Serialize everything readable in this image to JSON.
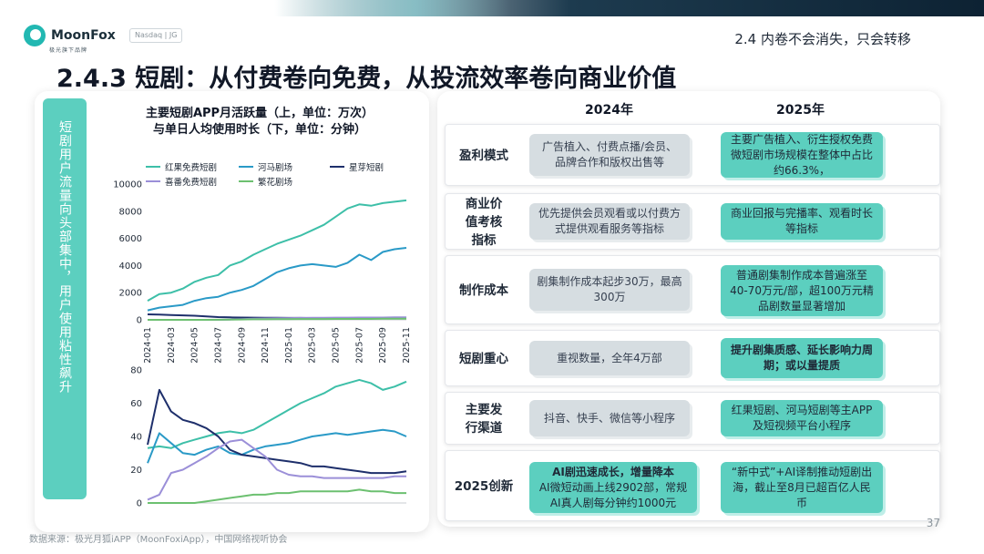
{
  "brand": {
    "name": "MoonFox",
    "sub": "极光旗下品牌",
    "badge": "Nasdaq | JG"
  },
  "section_tag": "2.4 内卷不会消失，只会转移",
  "title": "2.4.3 短剧：从付费卷向免费，从投流效率卷向商业价值",
  "left": {
    "vertical_label": "短剧用户流量向头部集中，用户使用粘性飙升",
    "chart_title_line1": "主要短剧APP月活跃量（上，单位：万次）",
    "chart_title_line2": "与单日人均使用时长（下，单位：分钟）"
  },
  "chart_data": [
    {
      "type": "line",
      "title": "主要短剧APP月活跃量（上，单位：万次）",
      "ylabel": "万次",
      "ylim": [
        0,
        10000
      ],
      "yticks": [
        0,
        2000,
        4000,
        6000,
        8000,
        10000
      ],
      "x": [
        "2024-01",
        "2024-02",
        "2024-03",
        "2024-04",
        "2024-05",
        "2024-06",
        "2024-07",
        "2024-08",
        "2024-09",
        "2024-10",
        "2024-11",
        "2024-12",
        "2025-01",
        "2025-02",
        "2025-03",
        "2025-04",
        "2025-05",
        "2025-06",
        "2025-07",
        "2025-08",
        "2025-09",
        "2025-10",
        "2025-11"
      ],
      "xtick_labels": [
        "2024-01",
        "2024-03",
        "2024-05",
        "2024-07",
        "2024-09",
        "2024-11",
        "2025-01",
        "2025-03",
        "2025-05",
        "2025-07",
        "2025-09",
        "2025-11"
      ],
      "series": [
        {
          "name": "红果免费短剧",
          "color": "#3dbfa8",
          "values": [
            1400,
            1900,
            2000,
            2300,
            2800,
            3100,
            3300,
            4000,
            4300,
            4800,
            5200,
            5600,
            5900,
            6200,
            6600,
            7000,
            7600,
            8200,
            8500,
            8400,
            8600,
            8700,
            8800
          ]
        },
        {
          "name": "河马剧场",
          "color": "#2a9ac7",
          "values": [
            700,
            900,
            1000,
            1100,
            1400,
            1600,
            1700,
            2000,
            2200,
            2500,
            3000,
            3500,
            3800,
            4000,
            4100,
            4000,
            3900,
            4200,
            4800,
            4400,
            5000,
            5200,
            5300
          ]
        },
        {
          "name": "星芽短剧",
          "color": "#1e2f6b",
          "values": [
            400,
            380,
            350,
            330,
            300,
            250,
            200,
            180,
            170,
            160,
            150,
            150,
            140,
            140,
            130,
            130,
            130,
            120,
            120,
            120,
            120,
            120,
            120
          ]
        },
        {
          "name": "喜番免费短剧",
          "color": "#9b8fd8",
          "values": [
            0,
            0,
            0,
            0,
            0,
            0,
            0,
            20,
            50,
            80,
            100,
            120,
            130,
            140,
            150,
            150,
            160,
            160,
            170,
            170,
            170,
            180,
            180
          ]
        },
        {
          "name": "繁花剧场",
          "color": "#6cc070",
          "values": [
            0,
            0,
            0,
            0,
            0,
            0,
            10,
            20,
            30,
            40,
            40,
            50,
            50,
            60,
            60,
            60,
            70,
            70,
            70,
            70,
            80,
            80,
            80
          ]
        }
      ]
    },
    {
      "type": "line",
      "title": "单日人均使用时长（下，单位：分钟）",
      "ylabel": "分钟",
      "ylim": [
        0,
        80
      ],
      "yticks": [
        0,
        20,
        40,
        60,
        80
      ],
      "x": [
        "2024-01",
        "2024-02",
        "2024-03",
        "2024-04",
        "2024-05",
        "2024-06",
        "2024-07",
        "2024-08",
        "2024-09",
        "2024-10",
        "2024-11",
        "2024-12",
        "2025-01",
        "2025-02",
        "2025-03",
        "2025-04",
        "2025-05",
        "2025-06",
        "2025-07",
        "2025-08",
        "2025-09",
        "2025-10",
        "2025-11"
      ],
      "series": [
        {
          "name": "红果免费短剧",
          "color": "#3dbfa8",
          "values": [
            33,
            34,
            33,
            36,
            38,
            40,
            42,
            43,
            42,
            44,
            48,
            52,
            56,
            60,
            63,
            66,
            70,
            72,
            74,
            72,
            68,
            70,
            73
          ]
        },
        {
          "name": "河马剧场",
          "color": "#2a9ac7",
          "values": [
            24,
            42,
            36,
            30,
            29,
            32,
            34,
            30,
            29,
            32,
            34,
            35,
            36,
            38,
            40,
            41,
            42,
            41,
            42,
            43,
            44,
            43,
            40
          ]
        },
        {
          "name": "星芽短剧",
          "color": "#1e2f6b",
          "values": [
            35,
            68,
            55,
            50,
            48,
            45,
            40,
            32,
            29,
            28,
            27,
            26,
            25,
            24,
            22,
            22,
            21,
            20,
            19,
            18,
            18,
            18,
            19
          ]
        },
        {
          "name": "喜番免费短剧",
          "color": "#9b8fd8",
          "values": [
            2,
            5,
            18,
            20,
            24,
            28,
            33,
            37,
            38,
            33,
            28,
            20,
            17,
            16,
            16,
            15,
            15,
            15,
            15,
            15,
            15,
            16,
            16
          ]
        },
        {
          "name": "繁花剧场",
          "color": "#6cc070",
          "values": [
            0,
            0,
            0,
            0,
            0,
            1,
            2,
            3,
            4,
            5,
            5,
            6,
            6,
            7,
            7,
            7,
            7,
            7,
            8,
            7,
            7,
            6,
            6
          ]
        }
      ]
    }
  ],
  "table": {
    "year_2024": "2024年",
    "year_2025": "2025年",
    "rows": [
      {
        "label": "盈利模式",
        "y2024": "广告植入、付费点播/会员、品牌合作和版权出售等",
        "y2025": "主要广告植入、衍生授权免费微短剧市场规模在整体中占比约66.3%，"
      },
      {
        "label": "商业价值考核指标",
        "y2024": "优先提供会员观看或以付费方式提供观看服务等指标",
        "y2025": "商业回报与完播率、观看时长等指标"
      },
      {
        "label": "制作成本",
        "y2024": "剧集制作成本起步30万，最高300万",
        "y2025": "普通剧集制作成本普遍涨至40-70万元/部，超100万元精品剧数量显著增加"
      },
      {
        "label": "短剧重心",
        "y2024": "重视数量，全年4万部",
        "y2025": "提升剧集质感、延长影响力周期；或以量提质"
      },
      {
        "label": "主要发行渠道",
        "y2024": "抖音、快手、微信等小程序",
        "y2025": "红果短剧、河马短剧等主APP及短视频平台小程序"
      },
      {
        "label": "2025创新",
        "y2024_strong": "AI剧迅速成长，增量降本",
        "y2024": "AI微短动画上线2902部，常规AI真人剧每分钟约1000元",
        "y2025": "“新中式”+AI译制推动短剧出海，截止至8月已超百亿人民币"
      }
    ]
  },
  "source": "数据来源：极光月狐iAPP（MoonFoxiApp），中国网络视听协会",
  "page_number": "37"
}
